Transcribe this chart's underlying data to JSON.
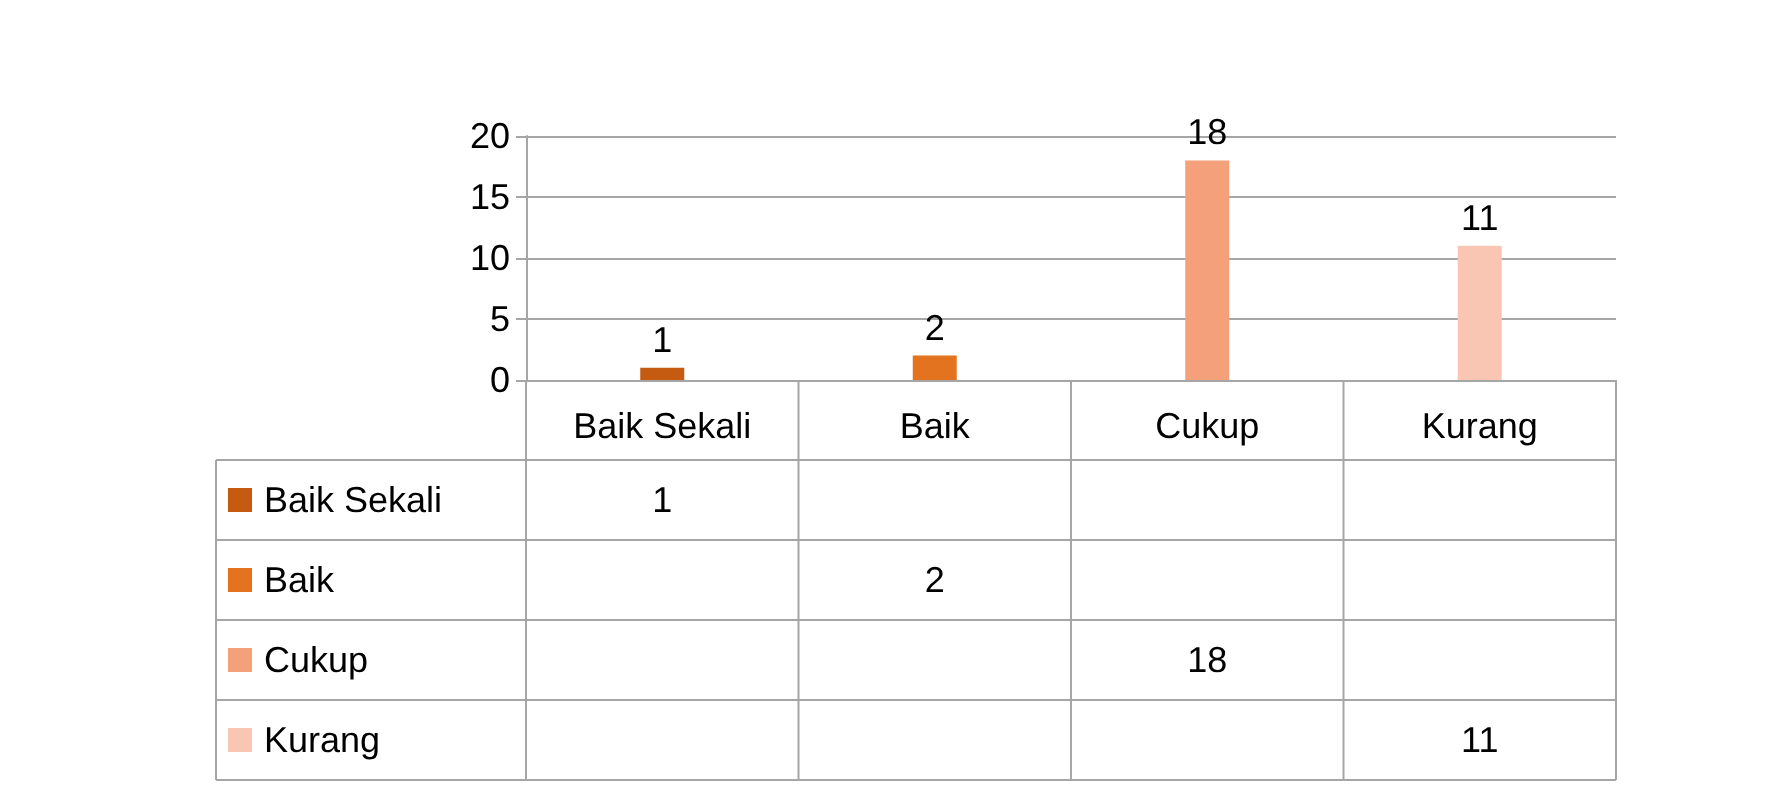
{
  "chart_data": {
    "type": "bar",
    "categories": [
      "Baik Sekali",
      "Baik",
      "Cukup",
      "Kurang"
    ],
    "series": [
      {
        "name": "Baik Sekali",
        "color": "#c55a11",
        "values": [
          1,
          null,
          null,
          null
        ]
      },
      {
        "name": "Baik",
        "color": "#e3731f",
        "values": [
          null,
          2,
          null,
          null
        ]
      },
      {
        "name": "Cukup",
        "color": "#f4a07a",
        "values": [
          null,
          null,
          18,
          null
        ]
      },
      {
        "name": "Kurang",
        "color": "#f8c6b2",
        "values": [
          null,
          null,
          null,
          11
        ]
      }
    ],
    "ylim": [
      0,
      20
    ],
    "yticks": [
      0,
      5,
      10,
      15,
      20
    ],
    "grid": "y",
    "data_labels": true,
    "legend": "bottom",
    "annotations": [
      "1",
      "2",
      "18",
      "11"
    ]
  }
}
